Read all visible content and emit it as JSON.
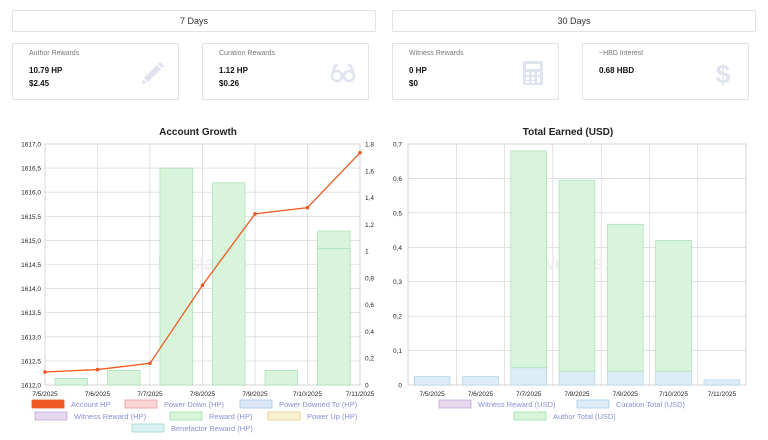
{
  "tabs": [
    {
      "label": "7 Days"
    },
    {
      "label": "30 Days"
    }
  ],
  "cards": [
    {
      "title": "Author Rewards",
      "line1": "10.79 HP",
      "line2": "$2.45",
      "icon": "pencil-icon"
    },
    {
      "title": "Curation Rewards",
      "line1": "1.12 HP",
      "line2": "$0.26",
      "icon": "glasses-icon"
    },
    {
      "title": "Witness Rewards",
      "line1": "0 HP",
      "line2": "$0",
      "icon": "calculator-icon"
    },
    {
      "title": "~HBD Interest",
      "line1": "0.68 HBD",
      "line2": "",
      "icon": "dollar-icon"
    }
  ],
  "colors": {
    "account_hp": "#ee5a24",
    "reward_green": "#d8f5dc",
    "reward_green_border": "#9fd9aa",
    "curation_blue": "#dcedf7",
    "icon_tint": "#dfe3f0",
    "legend_text": "#8a8fd8"
  },
  "chart_data": [
    {
      "type": "bar",
      "title": "Account Growth",
      "watermark": "hivestats.io",
      "categories": [
        "7/5/2025",
        "7/6/2025",
        "7/7/2025",
        "7/8/2025",
        "7/9/2025",
        "7/10/2025",
        "7/11/2025"
      ],
      "y_left_ticks": [
        "1612,0",
        "1612,5",
        "1613,0",
        "1613,5",
        "1614,0",
        "1614,5",
        "1615,0",
        "1615,5",
        "1616,0",
        "1616,5",
        "1617,0"
      ],
      "y_right_ticks": [
        "0",
        "0,2",
        "0,4",
        "0,6",
        "0,8",
        "1",
        "1,2",
        "1,4",
        "1,6",
        "1,8"
      ],
      "ylim_left": [
        1612.0,
        1617.0
      ],
      "ylim_right": [
        0,
        1.8
      ],
      "series": [
        {
          "name": "Account HP",
          "type": "line",
          "axis": "left",
          "values": [
            1612.27,
            1612.32,
            1612.45,
            1614.07,
            1615.55,
            1615.68,
            1616.82
          ]
        },
        {
          "name": "Reward (HP)",
          "type": "bar",
          "axis": "right",
          "values": [
            0.05,
            0.11,
            1.62,
            1.51,
            0.11,
            1.15,
            1.02
          ]
        }
      ],
      "legend": [
        {
          "name": "Account HP",
          "fill": "#ee5a24",
          "border": "#ee5a24"
        },
        {
          "name": "Power Down (HP)",
          "fill": "#fbd5d5",
          "border": "#e79a9a"
        },
        {
          "name": "Power Downed To (HP)",
          "fill": "#dce8f7",
          "border": "#a8c4e6"
        },
        {
          "name": "Witness Reward (HP)",
          "fill": "#e6d8ef",
          "border": "#c5a9d6"
        },
        {
          "name": "Reward (HP)",
          "fill": "#d8f5dc",
          "border": "#9fd9aa"
        },
        {
          "name": "Power Up (HP)",
          "fill": "#f8f0d0",
          "border": "#e2cf8a"
        },
        {
          "name": "Benefactor Reward (HP)",
          "fill": "#d9f2ef",
          "border": "#9fd6cf"
        }
      ]
    },
    {
      "type": "bar",
      "title": "Total Earned (USD)",
      "watermark": "hivestats.io",
      "categories": [
        "7/5/2025",
        "7/6/2025",
        "7/7/2025",
        "7/8/2025",
        "7/9/2025",
        "7/10/2025",
        "7/11/2025"
      ],
      "y_ticks": [
        "0",
        "0,1",
        "0,2",
        "0,3",
        "0,4",
        "0,5",
        "0,6",
        "0,7"
      ],
      "ylim": [
        0,
        0.7
      ],
      "stacked": true,
      "series": [
        {
          "name": "Curation Total (USD)",
          "values": [
            0.025,
            0.025,
            0.05,
            0.04,
            0.04,
            0.04,
            0.015
          ]
        },
        {
          "name": "Author Total (USD)",
          "values": [
            0,
            0,
            0.63,
            0.555,
            0.427,
            0.38,
            0
          ]
        }
      ],
      "legend": [
        {
          "name": "Witness Reward (USD)",
          "fill": "#e6d8ef",
          "border": "#c5a9d6"
        },
        {
          "name": "Curation Total (USD)",
          "fill": "#dcedf7",
          "border": "#a9cde6"
        },
        {
          "name": "Author Total (USD)",
          "fill": "#d8f5dc",
          "border": "#9fd9aa"
        }
      ]
    }
  ]
}
